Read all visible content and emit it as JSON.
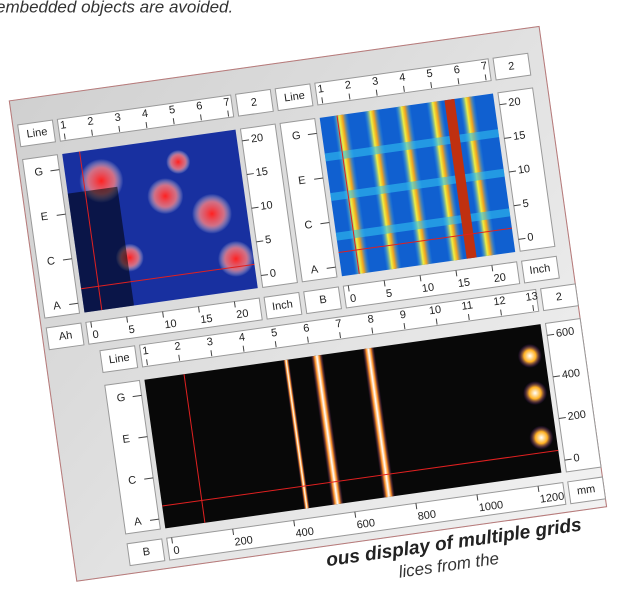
{
  "caption_top": "embedded objects are avoided.",
  "caption_bottom": [
    "ous display of multiple grids",
    "lices from the"
  ],
  "panels": [
    {
      "top_label": "Line",
      "top_ticks": [
        "1",
        "2",
        "3",
        "4",
        "5",
        "6",
        "7"
      ],
      "top_right": "2",
      "right_ticks": [
        "20",
        "15",
        "10",
        "5",
        "0"
      ],
      "right_unit": "Inch",
      "left_ticks": [
        "G",
        "E",
        "C",
        "A"
      ],
      "bottom_label": "Ah",
      "bottom_ticks": [
        "0",
        "5",
        "10",
        "15",
        "20"
      ]
    },
    {
      "top_label": "Line",
      "top_ticks": [
        "1",
        "2",
        "3",
        "4",
        "5",
        "6",
        "7"
      ],
      "top_right": "2",
      "right_ticks": [
        "20",
        "15",
        "10",
        "5",
        "0"
      ],
      "right_unit": "Inch",
      "left_ticks": [
        "G",
        "E",
        "C",
        "A"
      ],
      "bottom_label": "B",
      "bottom_ticks": [
        "0",
        "5",
        "10",
        "15",
        "20"
      ]
    },
    {
      "top_label": "Line",
      "top_ticks": [
        "1",
        "2",
        "3",
        "4",
        "5",
        "6",
        "7",
        "8",
        "9",
        "10",
        "11",
        "12",
        "13"
      ],
      "top_right": "2",
      "right_ticks": [
        "600",
        "400",
        "200",
        "0"
      ],
      "right_unit": "mm",
      "left_ticks": [
        "G",
        "E",
        "C",
        "A"
      ],
      "bottom_label": "B",
      "bottom_ticks": [
        "0",
        "200",
        "400",
        "600",
        "800",
        "1000",
        "1200"
      ]
    }
  ]
}
